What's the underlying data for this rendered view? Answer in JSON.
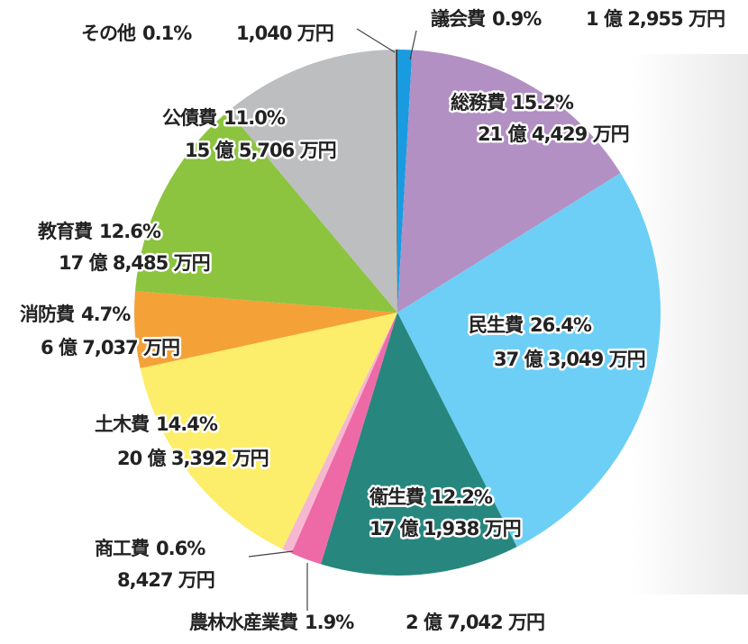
{
  "chart_data": {
    "type": "pie",
    "categories": [
      "議会費",
      "総務費",
      "民生費",
      "衛生費",
      "農林水産業費",
      "商工費",
      "土木費",
      "消防費",
      "教育費",
      "公債費",
      "その他"
    ],
    "values": [
      0.9,
      15.2,
      26.4,
      12.2,
      1.9,
      0.6,
      14.4,
      4.7,
      12.6,
      11.0,
      0.1
    ],
    "value_labels": [
      "0.9%",
      "15.2%",
      "26.4%",
      "12.2%",
      "1.9%",
      "0.6%",
      "14.4%",
      "4.7%",
      "12.6%",
      "11.0%",
      "0.1%"
    ],
    "amounts": [
      "1 億 2,955 万円",
      "21 億 4,429 万円",
      "37 億 3,049 万円",
      "17 億 1,938 万円",
      "2 億 7,042 万円",
      "8,427 万円",
      "20 億 3,392 万円",
      "6 億 7,037 万円",
      "17 億 8,485 万円",
      "15 億 5,706 万円",
      "1,040 万円"
    ],
    "colors": [
      "#1a9be0",
      "#b290c4",
      "#6dcff5",
      "#27877e",
      "#ee6aa7",
      "#f5b8d0",
      "#fcee6a",
      "#f4a138",
      "#8cc43f",
      "#bdbec0",
      "#3a3a3a"
    ]
  }
}
